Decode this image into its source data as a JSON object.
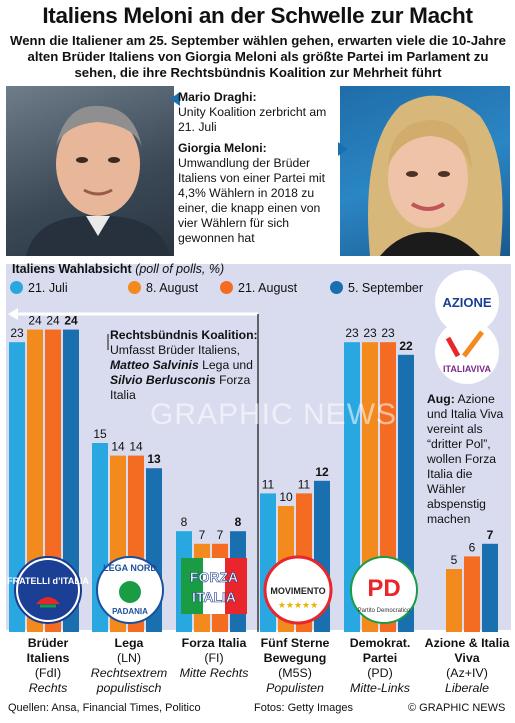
{
  "title": "Italiens Meloni an der Schwelle zur Macht",
  "subtitle": "Wenn die Italiener am 25. September wählen gehen, erwarten viele die 10-Jahre alten Brüder Italiens von Giorgia Meloni als größte Partei im Parlament zu sehen,  die ihre Rechtsbündnis Koalition zur Mehrheit führt",
  "info": {
    "draghi_name": "Mario Draghi:",
    "draghi_text": "Unity Koalition zerbricht am 21. Juli",
    "meloni_name": "Giorgia Meloni:",
    "meloni_text": "Umwandlung der Brüder Italiens von einer Partei mit 4,3% Wählern in 2018 zu einer, die knapp einen von vier Wählern für sich gewonnen hat"
  },
  "coalition": {
    "head": "Rechtsbündnis Koalition:",
    "l1": " Umfasst Brüder Italiens,",
    "salvini": "Matteo Salvinis",
    "l2": "Lega und",
    "berlusconi": "Silvio Berlusconis",
    "l3": "Forza Italia"
  },
  "aug_note": {
    "head": "Aug:",
    "text": " Azione und Italia Viva vereint als “dritter Pol”, wollen Forza Italia die Wähler abspenstig machen"
  },
  "logos": {
    "fdi": "FRATELLI d’ITALIA",
    "lega_top": "LEGA NORD",
    "lega_bottom": "PADANIA",
    "forza1": "FORZA",
    "forza2": "ITALIA",
    "m5s": "MOVIMENTO",
    "pd": "PD",
    "pd_small": "Partito Democratico",
    "azione": "AZIONE",
    "italiaviva": "ITALIAVIVA"
  },
  "watermark": "GRAPHIC NEWS",
  "footer": {
    "sources": "Quellen: Ansa, Financial Times, Politico",
    "photos": "Fotos: Getty Images",
    "copyright": "© GRAPHIC NEWS"
  },
  "colors": {
    "jul21": "#29a7e0",
    "aug8": "#f28a1e",
    "aug21": "#f36c21",
    "sep5": "#1a6faf",
    "plot_bg": "#d9dcef"
  },
  "chart_data": {
    "type": "bar",
    "title": "Italiens Wahlabsicht",
    "subtitle": "(poll of polls, %)",
    "categories": [
      {
        "name": "Brüder Italiens",
        "abbr": "(FdI)",
        "label": "Rechts"
      },
      {
        "name": "Lega",
        "abbr": "(LN)",
        "label": "Rechtsextrem populistisch"
      },
      {
        "name": "Forza Italia",
        "abbr": "(FI)",
        "label": "Mitte Rechts"
      },
      {
        "name": "Fünf Sterne Bewegung",
        "abbr": "(M5S)",
        "label": "Populisten"
      },
      {
        "name": "Demokrat. Partei",
        "abbr": "(PD)",
        "label": "Mitte-Links"
      },
      {
        "name": "Azione & Italia Viva",
        "abbr": "(Az+IV)",
        "label": "Liberale"
      }
    ],
    "series": [
      {
        "name": "21. Juli",
        "values": [
          23,
          15,
          8,
          11,
          23,
          null
        ]
      },
      {
        "name": "8. August",
        "values": [
          24,
          14,
          7,
          10,
          23,
          5
        ]
      },
      {
        "name": "21. August",
        "values": [
          24,
          14,
          7,
          11,
          23,
          6
        ]
      },
      {
        "name": "5. September",
        "values": [
          24,
          13,
          8,
          12,
          22,
          7
        ]
      }
    ],
    "ylim": [
      0,
      25
    ],
    "legend": "top",
    "grid": false
  }
}
